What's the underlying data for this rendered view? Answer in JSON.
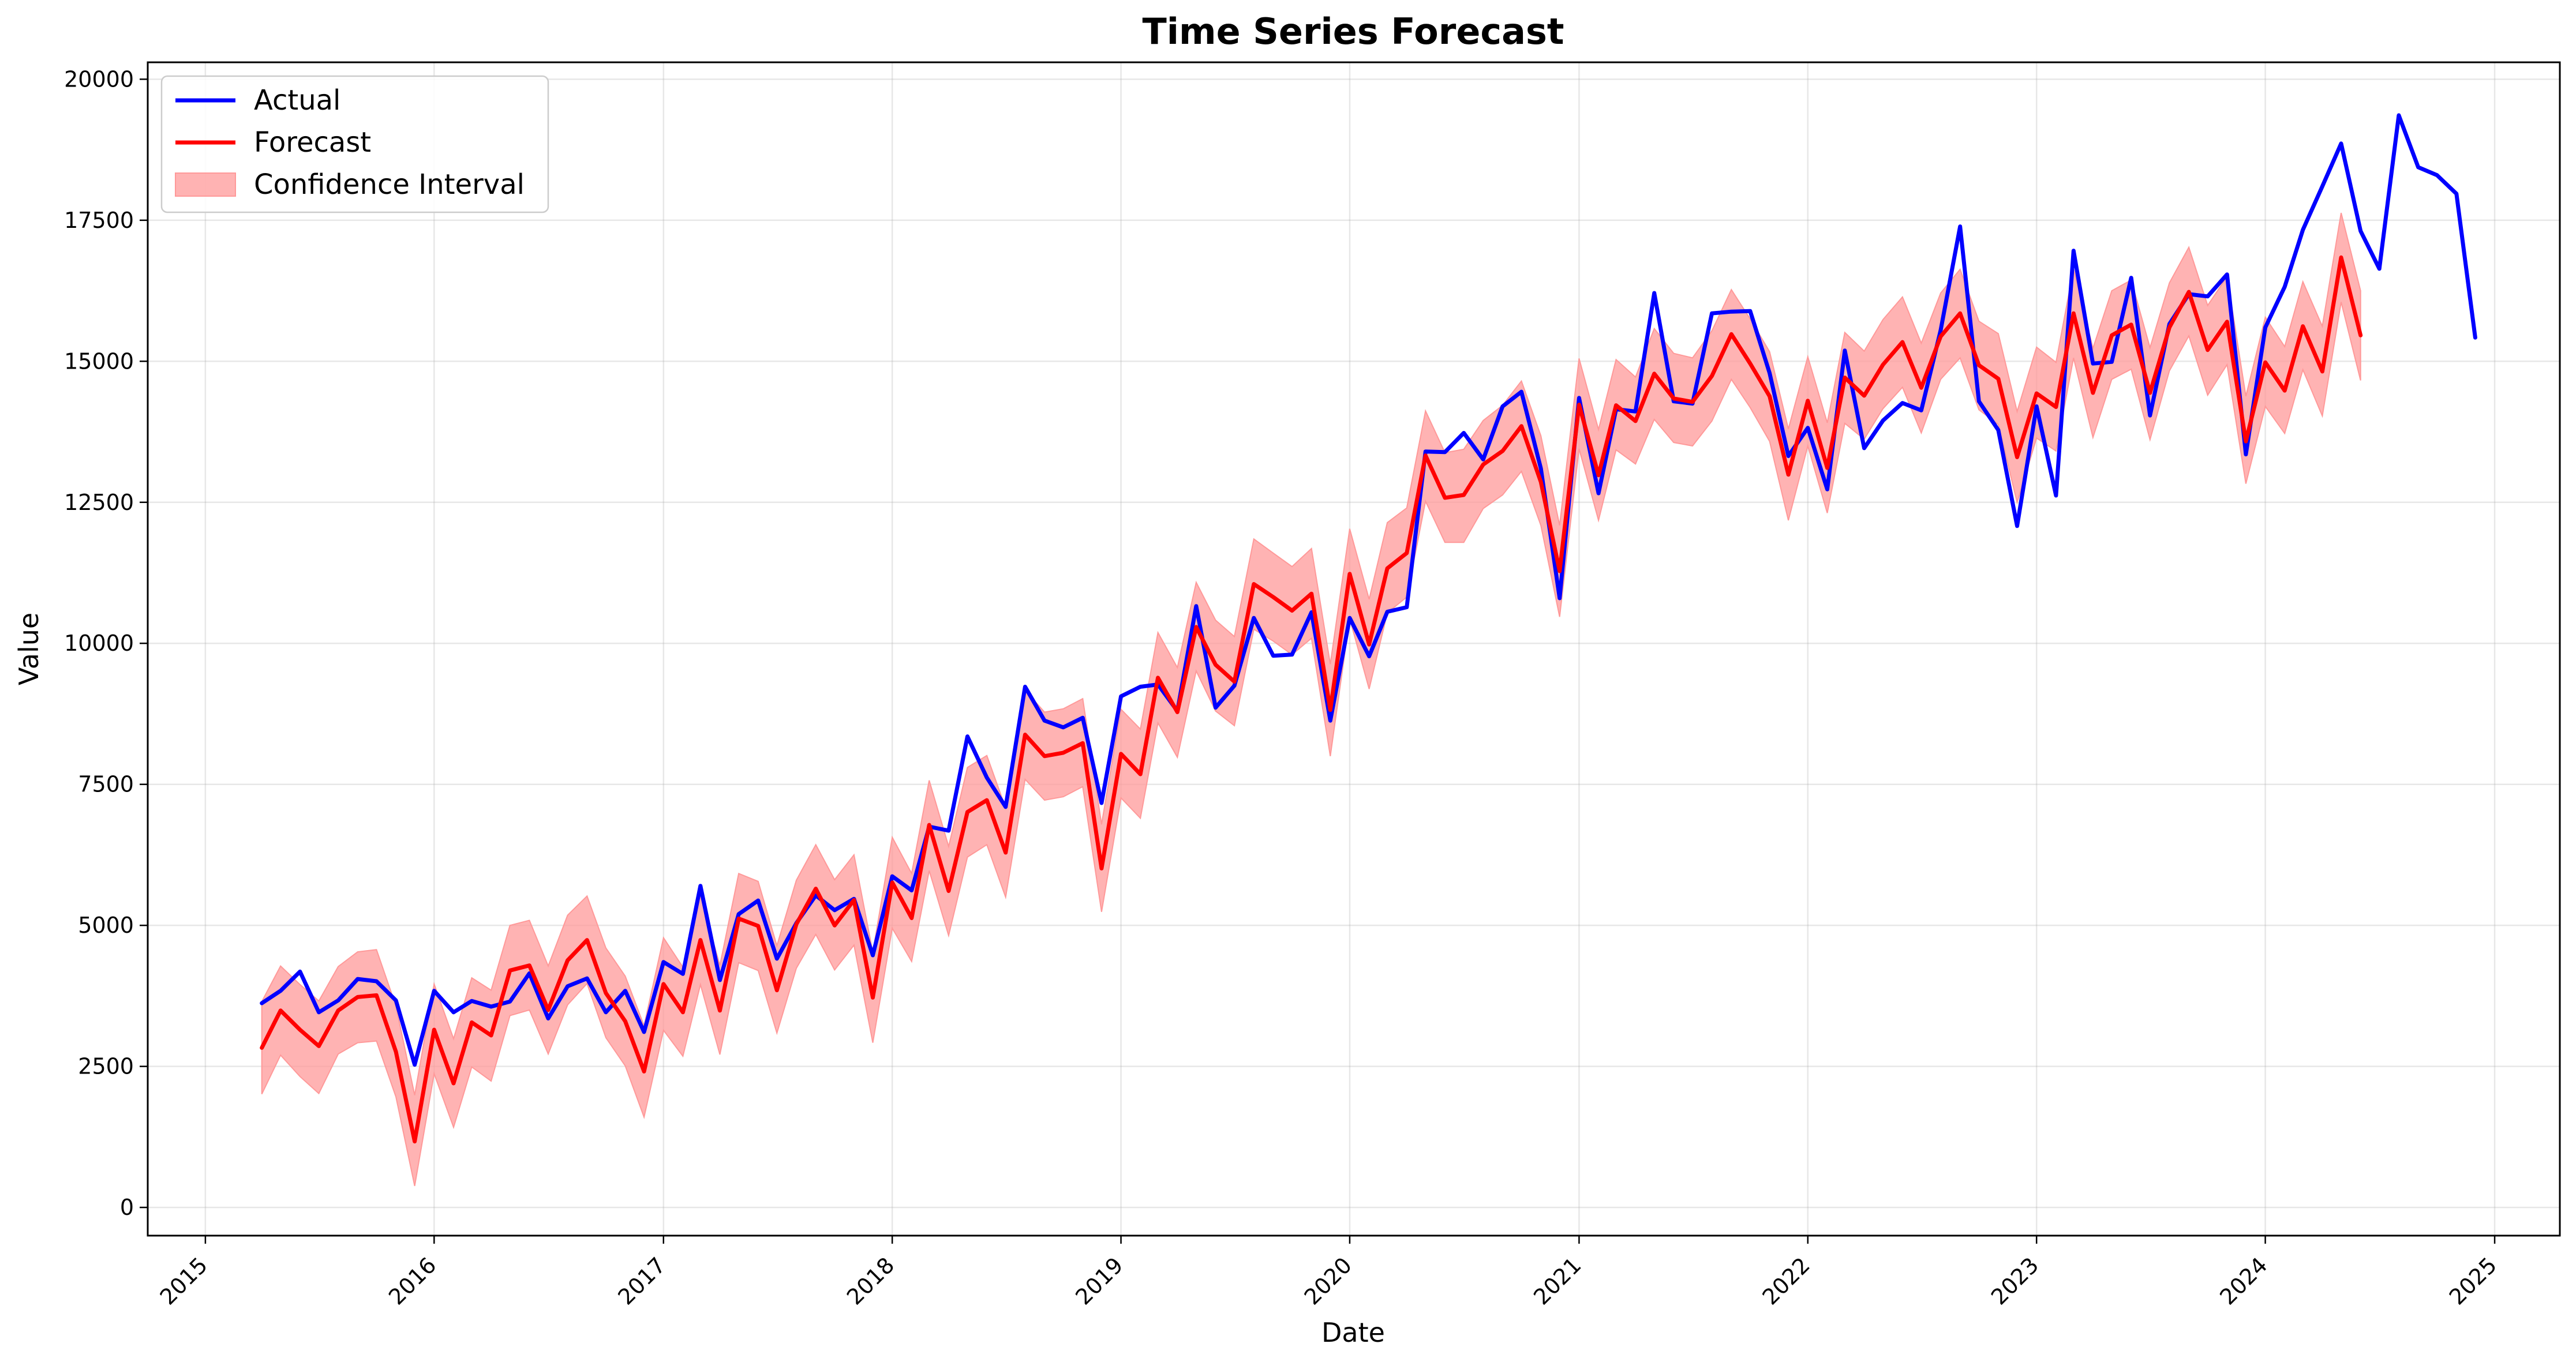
{
  "chart_data": {
    "type": "line",
    "title": "Time Series Forecast",
    "xlabel": "Date",
    "ylabel": "Value",
    "xlim": [
      "2014-10-01",
      "2025-04-15"
    ],
    "ylim": [
      -500,
      20300
    ],
    "grid": true,
    "legend_position": "top-left",
    "x_ticks": [
      "2015-01-01",
      "2016-01-01",
      "2017-01-01",
      "2018-01-01",
      "2019-01-01",
      "2020-01-01",
      "2021-01-01",
      "2022-01-01",
      "2023-01-01",
      "2024-01-01",
      "2025-01-01"
    ],
    "x_tick_labels": [
      "2015",
      "2016",
      "2017",
      "2018",
      "2019",
      "2020",
      "2021",
      "2022",
      "2023",
      "2024",
      "2025"
    ],
    "y_ticks": [
      0,
      2500,
      5000,
      7500,
      10000,
      12500,
      15000,
      17500,
      20000
    ],
    "y_tick_labels": [
      "0",
      "2500",
      "5000",
      "7500",
      "10000",
      "12500",
      "15000",
      "17500",
      "20000"
    ],
    "series": [
      {
        "name": "Actual",
        "color": "#0000ff",
        "dates": [
          "2015-04-01",
          "2015-05-01",
          "2015-06-01",
          "2015-07-01",
          "2015-08-01",
          "2015-09-01",
          "2015-10-01",
          "2015-11-01",
          "2015-12-01",
          "2016-01-01",
          "2016-02-01",
          "2016-03-01",
          "2016-04-01",
          "2016-05-01",
          "2016-06-01",
          "2016-07-01",
          "2016-08-01",
          "2016-09-01",
          "2016-10-01",
          "2016-11-01",
          "2016-12-01",
          "2017-01-01",
          "2017-02-01",
          "2017-03-01",
          "2017-04-01",
          "2017-05-01",
          "2017-06-01",
          "2017-07-01",
          "2017-08-01",
          "2017-09-01",
          "2017-10-01",
          "2017-11-01",
          "2017-12-01",
          "2018-01-01",
          "2018-02-01",
          "2018-03-01",
          "2018-04-01",
          "2018-05-01",
          "2018-06-01",
          "2018-07-01",
          "2018-08-01",
          "2018-09-01",
          "2018-10-01",
          "2018-11-01",
          "2018-12-01",
          "2019-01-01",
          "2019-02-01",
          "2019-03-01",
          "2019-04-01",
          "2019-05-01",
          "2019-06-01",
          "2019-07-01",
          "2019-08-01",
          "2019-09-01",
          "2019-10-01",
          "2019-11-01",
          "2019-12-01",
          "2020-01-01",
          "2020-02-01",
          "2020-03-01",
          "2020-04-01",
          "2020-05-01",
          "2020-06-01",
          "2020-07-01",
          "2020-08-01",
          "2020-09-01",
          "2020-10-01",
          "2020-11-01",
          "2020-12-01",
          "2021-01-01",
          "2021-02-01",
          "2021-03-01",
          "2021-04-01",
          "2021-05-01",
          "2021-06-01",
          "2021-07-01",
          "2021-08-01",
          "2021-09-01",
          "2021-10-01",
          "2021-11-01",
          "2021-12-01",
          "2022-01-01",
          "2022-02-01",
          "2022-03-01",
          "2022-04-01",
          "2022-05-01",
          "2022-06-01",
          "2022-07-01",
          "2022-08-01",
          "2022-09-01",
          "2022-10-01",
          "2022-11-01",
          "2022-12-01",
          "2023-01-01",
          "2023-02-01",
          "2023-03-01",
          "2023-04-01",
          "2023-05-01",
          "2023-06-01",
          "2023-07-01",
          "2023-08-01",
          "2023-09-01",
          "2023-10-01",
          "2023-11-01",
          "2023-12-01",
          "2024-01-01",
          "2024-02-01",
          "2024-03-01",
          "2024-04-01",
          "2024-05-01",
          "2024-06-01",
          "2024-07-01",
          "2024-08-01",
          "2024-09-01",
          "2024-10-01",
          "2024-11-01",
          "2024-12-01"
        ],
        "values": [
          3620,
          3840,
          4180,
          3460,
          3670,
          4050,
          4010,
          3670,
          2530,
          3840,
          3460,
          3660,
          3560,
          3650,
          4150,
          3350,
          3920,
          4060,
          3460,
          3840,
          3110,
          4350,
          4140,
          5700,
          4030,
          5200,
          5440,
          4410,
          5040,
          5530,
          5270,
          5470,
          4470,
          5870,
          5620,
          6750,
          6680,
          8350,
          7620,
          7100,
          9230,
          8630,
          8510,
          8680,
          7170,
          9060,
          9230,
          9270,
          8800,
          10660,
          8860,
          9250,
          10450,
          9780,
          9800,
          10550,
          8630,
          10450,
          9770,
          10560,
          10640,
          13400,
          13390,
          13730,
          13260,
          14200,
          14460,
          13100,
          10800,
          14350,
          12660,
          14150,
          14110,
          16210,
          14290,
          14250,
          15850,
          15880,
          15890,
          14790,
          13320,
          13820,
          12730,
          15190,
          13460,
          13950,
          14260,
          14130,
          15550,
          17390,
          14290,
          13780,
          12080,
          14200,
          12620,
          16960,
          14960,
          14990,
          16480,
          14040,
          15660,
          16190,
          16150,
          16540,
          13350,
          15600,
          16320,
          17330,
          18100,
          18860,
          17310,
          16640,
          19360,
          18440,
          18300,
          17970,
          15420
        ]
      },
      {
        "name": "Forecast",
        "color": "#ff0000",
        "dates": [
          "2015-04-01",
          "2015-05-01",
          "2015-06-01",
          "2015-07-01",
          "2015-08-01",
          "2015-09-01",
          "2015-10-01",
          "2015-11-01",
          "2015-12-01",
          "2016-01-01",
          "2016-02-01",
          "2016-03-01",
          "2016-04-01",
          "2016-05-01",
          "2016-06-01",
          "2016-07-01",
          "2016-08-01",
          "2016-09-01",
          "2016-10-01",
          "2016-11-01",
          "2016-12-01",
          "2017-01-01",
          "2017-02-01",
          "2017-03-01",
          "2017-04-01",
          "2017-05-01",
          "2017-06-01",
          "2017-07-01",
          "2017-08-01",
          "2017-09-01",
          "2017-10-01",
          "2017-11-01",
          "2017-12-01",
          "2018-01-01",
          "2018-02-01",
          "2018-03-01",
          "2018-04-01",
          "2018-05-01",
          "2018-06-01",
          "2018-07-01",
          "2018-08-01",
          "2018-09-01",
          "2018-10-01",
          "2018-11-01",
          "2018-12-01",
          "2019-01-01",
          "2019-02-01",
          "2019-03-01",
          "2019-04-01",
          "2019-05-01",
          "2019-06-01",
          "2019-07-01",
          "2019-08-01",
          "2019-09-01",
          "2019-10-01",
          "2019-11-01",
          "2019-12-01",
          "2020-01-01",
          "2020-02-01",
          "2020-03-01",
          "2020-04-01",
          "2020-05-01",
          "2020-06-01",
          "2020-07-01",
          "2020-08-01",
          "2020-09-01",
          "2020-10-01",
          "2020-11-01",
          "2020-12-01",
          "2021-01-01",
          "2021-02-01",
          "2021-03-01",
          "2021-04-01",
          "2021-05-01",
          "2021-06-01",
          "2021-07-01",
          "2021-08-01",
          "2021-09-01",
          "2021-10-01",
          "2021-11-01",
          "2021-12-01",
          "2022-01-01",
          "2022-02-01",
          "2022-03-01",
          "2022-04-01",
          "2022-05-01",
          "2022-06-01",
          "2022-07-01",
          "2022-08-01",
          "2022-09-01",
          "2022-10-01",
          "2022-11-01",
          "2022-12-01",
          "2023-01-01",
          "2023-02-01",
          "2023-03-01",
          "2023-04-01",
          "2023-05-01",
          "2023-06-01",
          "2023-07-01",
          "2023-08-01",
          "2023-09-01",
          "2023-10-01",
          "2023-11-01",
          "2023-12-01",
          "2024-01-01",
          "2024-02-01",
          "2024-03-01",
          "2024-04-01",
          "2024-05-01",
          "2024-06-01"
        ],
        "values": [
          2830,
          3490,
          3150,
          2860,
          3490,
          3730,
          3760,
          2760,
          1170,
          3150,
          2200,
          3280,
          3050,
          4200,
          4290,
          3500,
          4380,
          4740,
          3800,
          3300,
          2410,
          3960,
          3460,
          4740,
          3490,
          5120,
          4990,
          3850,
          5020,
          5650,
          5000,
          5450,
          3720,
          5760,
          5130,
          6780,
          5610,
          7010,
          7220,
          6290,
          8380,
          8000,
          8060,
          8230,
          6010,
          8040,
          7680,
          9390,
          8780,
          10290,
          9620,
          9320,
          11050,
          10820,
          10580,
          10880,
          8820,
          11230,
          9980,
          11330,
          11600,
          13330,
          12580,
          12630,
          13170,
          13410,
          13850,
          12860,
          11280,
          14230,
          12980,
          14220,
          13940,
          14780,
          14340,
          14280,
          14740,
          15480,
          14960,
          14380,
          12990,
          14300,
          13110,
          14710,
          14390,
          14940,
          15340,
          14530,
          15440,
          15850,
          14930,
          14690,
          13300,
          14430,
          14190,
          15850,
          14440,
          15460,
          15650,
          14440,
          15600,
          16230,
          15200,
          15700,
          13580,
          14980,
          14480,
          15620,
          14820,
          16840,
          15460
        ],
        "ci_lower": [
          2010,
          2700,
          2320,
          2020,
          2720,
          2920,
          2950,
          1960,
          380,
          2370,
          1420,
          2490,
          2240,
          3400,
          3500,
          2720,
          3590,
          3970,
          3010,
          2510,
          1600,
          3140,
          2680,
          3950,
          2710,
          4340,
          4200,
          3090,
          4240,
          4840,
          4210,
          4650,
          2920,
          4950,
          4360,
          5970,
          4820,
          6210,
          6430,
          5500,
          7590,
          7220,
          7280,
          7460,
          5240,
          7260,
          6900,
          8590,
          7980,
          9510,
          8800,
          8540,
          10250,
          10040,
          9800,
          10090,
          8000,
          10440,
          9190,
          10540,
          10820,
          12520,
          11790,
          11790,
          12390,
          12630,
          13050,
          12090,
          10470,
          13450,
          12180,
          13430,
          13180,
          13970,
          13560,
          13500,
          13940,
          14680,
          14180,
          13580,
          12180,
          13500,
          12310,
          13900,
          13620,
          14160,
          14540,
          13730,
          14680,
          15060,
          14140,
          13880,
          12500,
          13640,
          13410,
          15060,
          13650,
          14680,
          14860,
          13610,
          14830,
          15450,
          14400,
          14940,
          12830,
          14200,
          13720,
          14850,
          14030,
          16050,
          14660
        ],
        "ci_upper": [
          3650,
          4280,
          3950,
          3660,
          4270,
          4530,
          4570,
          3570,
          1990,
          3960,
          2990,
          4070,
          3850,
          5000,
          5090,
          4280,
          5180,
          5520,
          4600,
          4100,
          3220,
          4780,
          4260,
          5520,
          4290,
          5920,
          5780,
          4640,
          5800,
          6430,
          5810,
          6250,
          4520,
          6560,
          5920,
          7570,
          6400,
          7800,
          8010,
          7080,
          9170,
          8780,
          8840,
          9020,
          6790,
          8830,
          8480,
          10190,
          9570,
          11080,
          10410,
          10120,
          11850,
          11600,
          11360,
          11680,
          9630,
          12030,
          10780,
          12140,
          12400,
          14120,
          13380,
          13440,
          13950,
          14220,
          14650,
          13680,
          12090,
          15050,
          13790,
          15030,
          14720,
          15580,
          15140,
          15060,
          15540,
          16270,
          15750,
          15170,
          13800,
          15080,
          13910,
          15510,
          15180,
          15740,
          16140,
          15320,
          16210,
          16630,
          15710,
          15490,
          14110,
          15250,
          14980,
          16640,
          15230,
          16250,
          16440,
          15240,
          16390,
          17020,
          15990,
          16500,
          14380,
          15780,
          15260,
          16410,
          15620,
          17630,
          16250
        ]
      }
    ],
    "legend": [
      {
        "label": "Actual",
        "kind": "line",
        "color": "#0000ff"
      },
      {
        "label": "Forecast",
        "kind": "line",
        "color": "#ff0000"
      },
      {
        "label": "Confidence Interval",
        "kind": "patch",
        "color": "#ff9999"
      }
    ]
  }
}
